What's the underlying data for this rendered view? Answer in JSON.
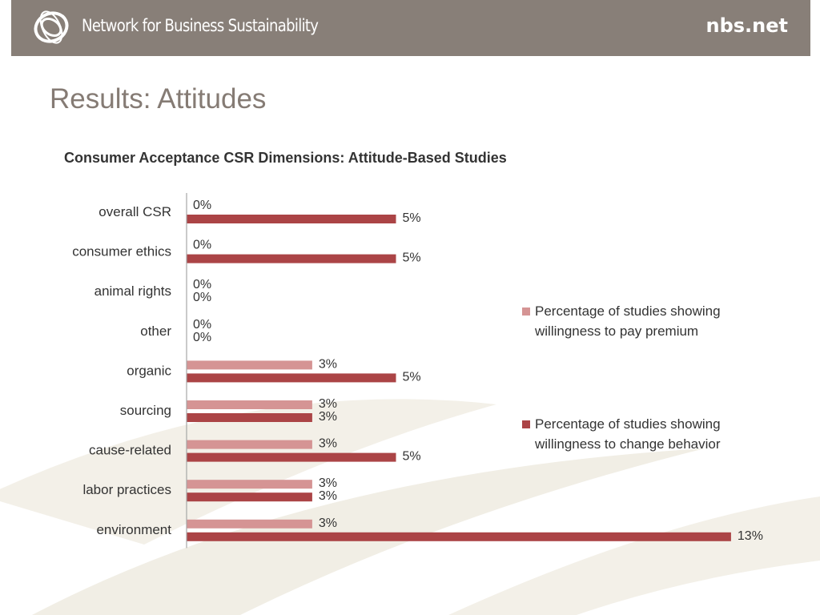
{
  "header": {
    "org_name": "Network for Business Sustainability",
    "site_url": "nbs.net",
    "logo_icon": "ring-swirl-icon",
    "background": "#887f78"
  },
  "slide": {
    "title": "Results: Attitudes"
  },
  "chart_data": {
    "type": "bar",
    "orientation": "horizontal",
    "title": "Consumer Acceptance CSR Dimensions: Attitude-Based Studies",
    "xlabel": "",
    "ylabel": "",
    "xlim": [
      0,
      13
    ],
    "grid": false,
    "legend_position": "right",
    "categories": [
      "overall CSR",
      "consumer ethics",
      "animal rights",
      "other",
      "organic",
      "sourcing",
      "cause-related",
      "labor practices",
      "environment"
    ],
    "series": [
      {
        "name": "Percentage of studies showing willingness to pay premium",
        "color": "#d59494",
        "values": [
          0,
          0,
          0,
          0,
          3,
          3,
          3,
          3,
          3
        ],
        "labels": [
          "0%",
          "0%",
          "0%",
          "0%",
          "3%",
          "3%",
          "3%",
          "3%",
          "3%"
        ]
      },
      {
        "name": "Percentage of studies showing willingness to change behavior",
        "color": "#ab4446",
        "values": [
          5,
          5,
          0,
          0,
          5,
          3,
          5,
          3,
          13
        ],
        "labels": [
          "5%",
          "5%",
          "0%",
          "0%",
          "5%",
          "3%",
          "5%",
          "3%",
          "13%"
        ]
      }
    ]
  }
}
